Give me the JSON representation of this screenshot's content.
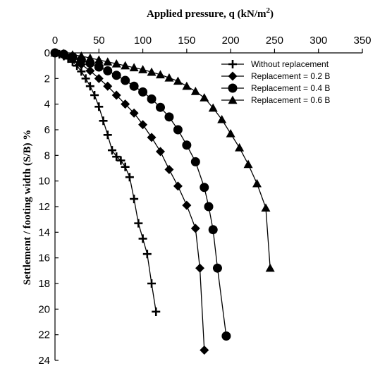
{
  "chart_data": {
    "type": "line",
    "xlabel": "Applied pressure, q (kN/m",
    "xlabel_sup": "2",
    "xlabel_close": ")",
    "ylabel": "Settlement / footing width (S/B) %",
    "xlim": [
      0,
      350
    ],
    "ylim": [
      0,
      24
    ],
    "y_inverted": true,
    "x_axis_position": "top",
    "xticks": [
      "0",
      "50",
      "100",
      "150",
      "200",
      "250",
      "300",
      "350"
    ],
    "yticks": [
      "0",
      "2",
      "4",
      "6",
      "8",
      "10",
      "12",
      "14",
      "16",
      "18",
      "20",
      "22",
      "24"
    ],
    "grid": false,
    "legend_position": "top-right",
    "series": [
      {
        "name": "Without replacement",
        "marker": "plus",
        "x": [
          0,
          5,
          10,
          15,
          20,
          25,
          30,
          35,
          40,
          45,
          50,
          55,
          60,
          65,
          70,
          75,
          80,
          85,
          90,
          95,
          100,
          105,
          110,
          115
        ],
        "y": [
          0,
          0.1,
          0.25,
          0.45,
          0.7,
          1.0,
          1.45,
          2.0,
          2.6,
          3.3,
          4.2,
          5.3,
          6.4,
          7.6,
          8.1,
          8.4,
          8.9,
          9.7,
          11.4,
          13.3,
          14.5,
          15.7,
          18.0,
          20.2
        ]
      },
      {
        "name": "Replacement = 0.2 B",
        "marker": "diamond",
        "x": [
          0,
          10,
          20,
          30,
          40,
          50,
          60,
          70,
          80,
          90,
          100,
          110,
          120,
          130,
          140,
          150,
          160,
          165,
          170
        ],
        "y": [
          0,
          0.2,
          0.5,
          0.9,
          1.4,
          2.0,
          2.6,
          3.3,
          4.0,
          4.7,
          5.6,
          6.6,
          7.7,
          9.1,
          10.4,
          11.9,
          13.7,
          16.8,
          23.2
        ]
      },
      {
        "name": "Replacement = 0.4 B",
        "marker": "circle",
        "x": [
          0,
          10,
          20,
          30,
          40,
          50,
          60,
          70,
          80,
          90,
          100,
          110,
          120,
          130,
          140,
          150,
          160,
          170,
          175,
          180,
          185,
          195
        ],
        "y": [
          0,
          0.1,
          0.3,
          0.55,
          0.8,
          1.1,
          1.4,
          1.75,
          2.15,
          2.6,
          3.05,
          3.6,
          4.25,
          5.0,
          6.0,
          7.2,
          8.5,
          10.5,
          12.0,
          13.8,
          16.8,
          22.1
        ]
      },
      {
        "name": "Replacement = 0.6 B",
        "marker": "triangle",
        "x": [
          0,
          10,
          20,
          30,
          40,
          50,
          60,
          70,
          80,
          90,
          100,
          110,
          120,
          130,
          140,
          150,
          160,
          170,
          180,
          190,
          200,
          210,
          220,
          230,
          240,
          245
        ],
        "y": [
          0,
          0.05,
          0.15,
          0.25,
          0.4,
          0.55,
          0.7,
          0.85,
          1.0,
          1.15,
          1.3,
          1.5,
          1.7,
          1.95,
          2.2,
          2.6,
          3.0,
          3.5,
          4.3,
          5.2,
          6.3,
          7.4,
          8.7,
          10.2,
          12.1,
          16.8
        ]
      }
    ]
  }
}
